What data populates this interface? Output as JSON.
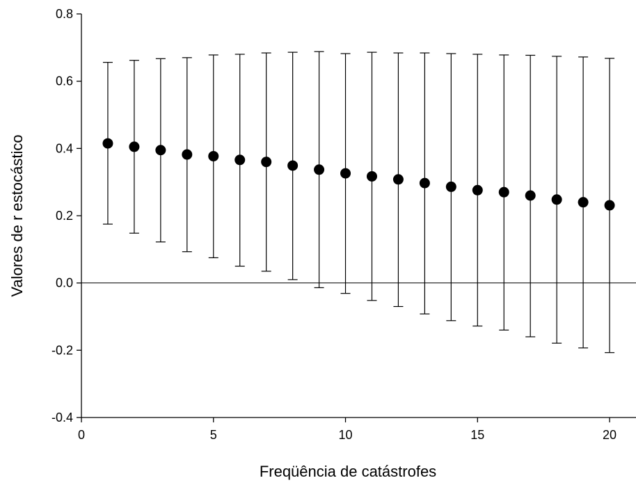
{
  "chart_data": {
    "type": "scatter",
    "title": "",
    "xlabel": "Freqüência de catástrofes",
    "ylabel": "Valores de r estocástico",
    "xlim": [
      0,
      21
    ],
    "ylim": [
      -0.4,
      0.8
    ],
    "x_ticks": [
      0,
      5,
      10,
      15,
      20
    ],
    "y_ticks": [
      -0.4,
      -0.2,
      0.0,
      0.2,
      0.4,
      0.6,
      0.8
    ],
    "x_tick_labels": [
      "0",
      "5",
      "10",
      "15",
      "20"
    ],
    "y_tick_labels": [
      "-0.4",
      "-0.2",
      "0.0",
      "0.2",
      "0.4",
      "0.6",
      "0.8"
    ],
    "reference_line_y": 0,
    "grid": false,
    "legend": "none",
    "marker_color": "#000000",
    "series": [
      {
        "x": [
          1,
          2,
          3,
          4,
          5,
          6,
          7,
          8,
          9,
          10,
          11,
          12,
          13,
          14,
          15,
          16,
          17,
          18,
          19,
          20
        ],
        "y": [
          0.415,
          0.405,
          0.395,
          0.382,
          0.377,
          0.366,
          0.36,
          0.349,
          0.337,
          0.326,
          0.317,
          0.308,
          0.297,
          0.286,
          0.276,
          0.27,
          0.26,
          0.248,
          0.24,
          0.231
        ],
        "y_upper": [
          0.656,
          0.662,
          0.667,
          0.67,
          0.678,
          0.68,
          0.684,
          0.686,
          0.688,
          0.682,
          0.686,
          0.684,
          0.684,
          0.682,
          0.68,
          0.678,
          0.677,
          0.674,
          0.672,
          0.668
        ],
        "y_lower": [
          0.175,
          0.148,
          0.122,
          0.093,
          0.075,
          0.05,
          0.035,
          0.01,
          -0.014,
          -0.031,
          -0.052,
          -0.07,
          -0.092,
          -0.112,
          -0.128,
          -0.14,
          -0.16,
          -0.179,
          -0.193,
          -0.207
        ]
      }
    ]
  }
}
